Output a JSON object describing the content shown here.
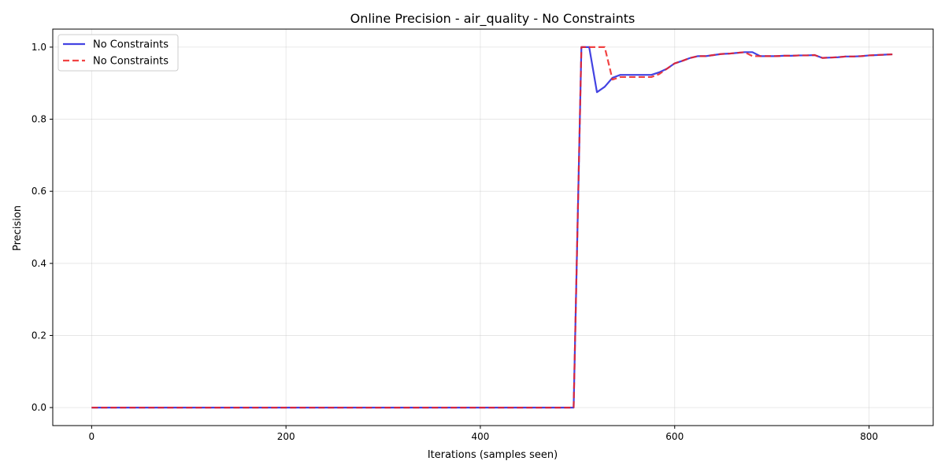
{
  "chart_data": {
    "type": "line",
    "title": "Online Precision - air_quality - No Constraints",
    "xlabel": "Iterations (samples seen)",
    "ylabel": "Precision",
    "xlim": [
      -40,
      866
    ],
    "ylim": [
      -0.05,
      1.05
    ],
    "xticks": [
      0,
      200,
      400,
      600,
      800
    ],
    "yticks": [
      0.0,
      0.2,
      0.4,
      0.6,
      0.8,
      1.0
    ],
    "grid": true,
    "legend_position": "top-left",
    "series": [
      {
        "name": "No Constraints",
        "color": "#2222dd",
        "style": "solid",
        "x": [
          0,
          100,
          200,
          300,
          400,
          496,
          504,
          512,
          520,
          528,
          536,
          544,
          552,
          560,
          568,
          576,
          584,
          592,
          600,
          608,
          616,
          624,
          632,
          640,
          648,
          656,
          664,
          672,
          680,
          688,
          696,
          704,
          712,
          720,
          728,
          736,
          744,
          752,
          760,
          768,
          776,
          784,
          792,
          800,
          808,
          816,
          824
        ],
        "y": [
          0.0,
          0.0,
          0.0,
          0.0,
          0.0,
          0.0,
          1.0,
          1.0,
          0.875,
          0.89,
          0.915,
          0.923,
          0.923,
          0.923,
          0.923,
          0.923,
          0.93,
          0.94,
          0.955,
          0.962,
          0.97,
          0.975,
          0.975,
          0.978,
          0.981,
          0.982,
          0.984,
          0.986,
          0.986,
          0.975,
          0.975,
          0.975,
          0.976,
          0.976,
          0.977,
          0.977,
          0.978,
          0.97,
          0.971,
          0.972,
          0.974,
          0.974,
          0.975,
          0.977,
          0.978,
          0.979,
          0.98
        ]
      },
      {
        "name": "No Constraints",
        "color": "#ee2222",
        "style": "dashed",
        "x": [
          0,
          100,
          200,
          300,
          400,
          496,
          504,
          512,
          520,
          528,
          536,
          544,
          552,
          560,
          568,
          576,
          584,
          592,
          600,
          608,
          616,
          624,
          632,
          640,
          648,
          656,
          664,
          672,
          680,
          688,
          696,
          704,
          712,
          720,
          728,
          736,
          744,
          752,
          760,
          768,
          776,
          784,
          792,
          800,
          808,
          816,
          824
        ],
        "y": [
          0.0,
          0.0,
          0.0,
          0.0,
          0.0,
          0.0,
          1.0,
          1.0,
          1.0,
          1.0,
          0.91,
          0.917,
          0.917,
          0.917,
          0.917,
          0.917,
          0.925,
          0.94,
          0.955,
          0.962,
          0.97,
          0.975,
          0.975,
          0.978,
          0.981,
          0.982,
          0.984,
          0.986,
          0.975,
          0.975,
          0.975,
          0.975,
          0.976,
          0.976,
          0.977,
          0.977,
          0.978,
          0.97,
          0.971,
          0.972,
          0.974,
          0.974,
          0.975,
          0.977,
          0.978,
          0.979,
          0.98
        ]
      }
    ]
  }
}
